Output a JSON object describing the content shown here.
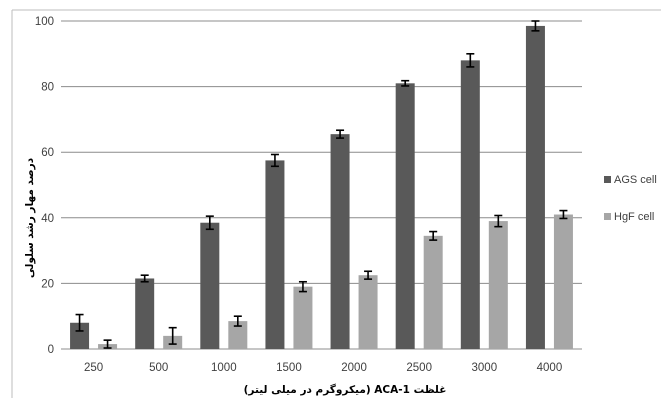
{
  "chart_data": {
    "type": "bar",
    "title": "",
    "xlabel": "غلظت ACA-1 (میکروگرم در میلی لیتر)",
    "ylabel": "درصد مهار رشد سلولی",
    "ylim": [
      0,
      100
    ],
    "yticks": [
      0,
      20,
      40,
      60,
      80,
      100
    ],
    "grid": true,
    "legend_position": "right",
    "categories": [
      "250",
      "500",
      "1000",
      "1500",
      "2000",
      "2500",
      "3000",
      "4000"
    ],
    "series": [
      {
        "name": "AGS cell",
        "color": "#595959",
        "values": [
          8,
          21.5,
          38.5,
          57.5,
          65.5,
          81,
          88,
          98.5
        ],
        "errors": [
          2.5,
          1,
          2,
          1.8,
          1.2,
          0.8,
          2,
          1.5
        ]
      },
      {
        "name": "HgF cell",
        "color": "#a6a6a6",
        "values": [
          1.5,
          4,
          8.5,
          19,
          22.5,
          34.5,
          39,
          41
        ],
        "errors": [
          1.2,
          2.5,
          1.5,
          1.5,
          1.2,
          1.3,
          1.7,
          1.2
        ]
      }
    ]
  }
}
